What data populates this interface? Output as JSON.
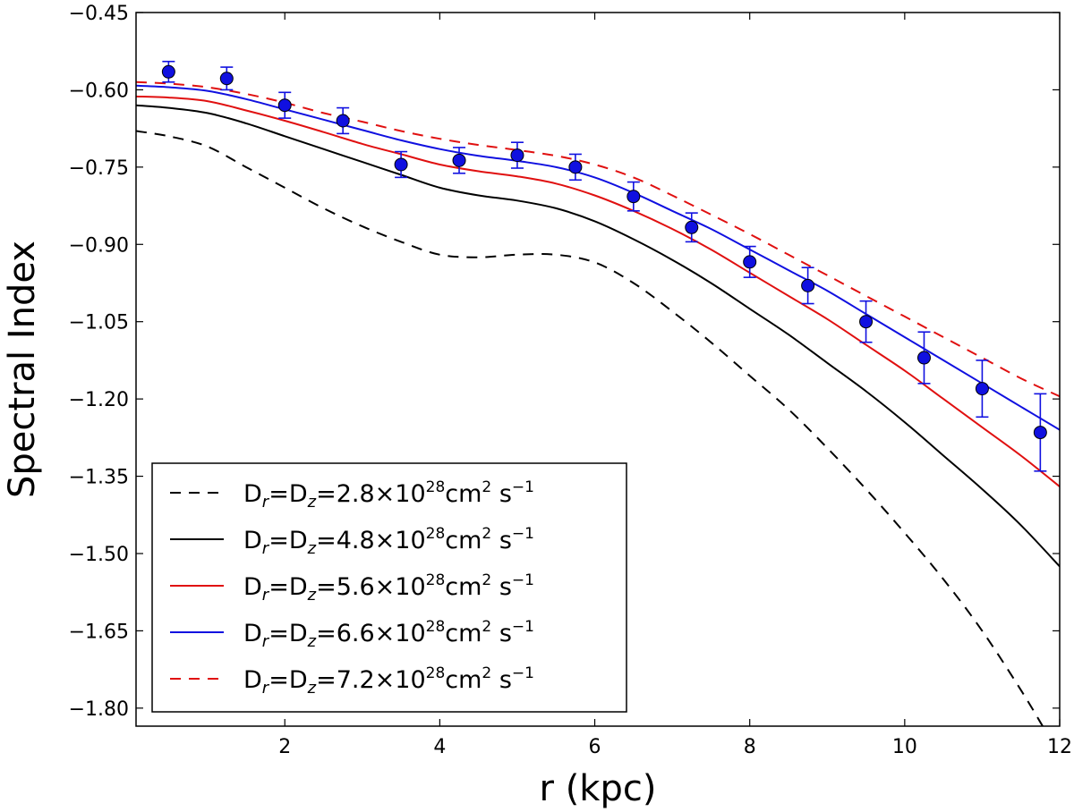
{
  "chart_data": {
    "type": "line",
    "xlabel": "r (kpc)",
    "ylabel": "Spectral Index",
    "xlim": [
      0.08,
      12
    ],
    "ylim": [
      -1.835,
      -0.45
    ],
    "xticks": [
      2,
      4,
      6,
      8,
      10,
      12
    ],
    "xtick_labels": [
      "2",
      "4",
      "6",
      "8",
      "10",
      "12"
    ],
    "yticks": [
      -0.45,
      -0.6,
      -0.75,
      -0.9,
      -1.05,
      -1.2,
      -1.35,
      -1.5,
      -1.65,
      -1.8
    ],
    "ytick_labels": [
      "−0.45",
      "−0.60",
      "−0.75",
      "−0.90",
      "−1.05",
      "−1.20",
      "−1.35",
      "−1.50",
      "−1.65",
      "−1.80"
    ],
    "legend_position": "lower-left",
    "series": [
      {
        "name": "Dr=Dz=2.8e28",
        "label_parts": [
          "D",
          "r",
          "=D",
          "z",
          "=2.8×10",
          "28",
          "cm",
          "2",
          " s",
          "−1"
        ],
        "color": "#000000",
        "dashed": true,
        "x": [
          0.08,
          0.5,
          1,
          1.5,
          2,
          2.5,
          3,
          3.5,
          4,
          4.5,
          5,
          5.5,
          6,
          6.5,
          7,
          7.5,
          8,
          8.5,
          9,
          9.5,
          10,
          10.5,
          11,
          11.5,
          11.78
        ],
        "y": [
          -0.68,
          -0.69,
          -0.71,
          -0.75,
          -0.79,
          -0.83,
          -0.865,
          -0.895,
          -0.92,
          -0.925,
          -0.92,
          -0.92,
          -0.935,
          -0.975,
          -1.03,
          -1.09,
          -1.155,
          -1.22,
          -1.295,
          -1.375,
          -1.46,
          -1.55,
          -1.65,
          -1.765,
          -1.835
        ]
      },
      {
        "name": "Dr=Dz=4.8e28",
        "label_parts": [
          "D",
          "r",
          "=D",
          "z",
          "=4.8×10",
          "28",
          "cm",
          "2",
          " s",
          "−1"
        ],
        "color": "#000000",
        "dashed": false,
        "x": [
          0.08,
          0.5,
          1,
          1.5,
          2,
          2.5,
          3,
          3.5,
          4,
          4.5,
          5,
          5.5,
          6,
          6.5,
          7,
          7.5,
          8,
          8.5,
          9,
          9.5,
          10,
          10.5,
          11,
          11.5,
          12
        ],
        "y": [
          -0.63,
          -0.635,
          -0.645,
          -0.665,
          -0.69,
          -0.715,
          -0.74,
          -0.765,
          -0.79,
          -0.805,
          -0.815,
          -0.83,
          -0.855,
          -0.89,
          -0.93,
          -0.975,
          -1.025,
          -1.075,
          -1.13,
          -1.185,
          -1.245,
          -1.31,
          -1.375,
          -1.445,
          -1.525
        ]
      },
      {
        "name": "Dr=Dz=5.6e28",
        "label_parts": [
          "D",
          "r",
          "=D",
          "z",
          "=5.6×10",
          "28",
          "cm",
          "2",
          " s",
          "−1"
        ],
        "color": "#e01010",
        "dashed": false,
        "x": [
          0.08,
          0.5,
          1,
          1.5,
          2,
          2.5,
          3,
          3.5,
          4,
          4.5,
          5,
          5.5,
          6,
          6.5,
          7,
          7.5,
          8,
          8.5,
          9,
          9.5,
          10,
          10.5,
          11,
          11.5,
          12
        ],
        "y": [
          -0.613,
          -0.615,
          -0.622,
          -0.64,
          -0.66,
          -0.682,
          -0.705,
          -0.725,
          -0.745,
          -0.758,
          -0.768,
          -0.782,
          -0.805,
          -0.835,
          -0.87,
          -0.91,
          -0.955,
          -1.0,
          -1.045,
          -1.095,
          -1.145,
          -1.2,
          -1.255,
          -1.31,
          -1.37
        ]
      },
      {
        "name": "Dr=Dz=6.6e28",
        "label_parts": [
          "D",
          "r",
          "=D",
          "z",
          "=6.6×10",
          "28",
          "cm",
          "2",
          " s",
          "−1"
        ],
        "color": "#1010e0",
        "dashed": false,
        "x": [
          0.08,
          0.5,
          1,
          1.5,
          2,
          2.5,
          3,
          3.5,
          4,
          4.5,
          5,
          5.5,
          6,
          6.5,
          7,
          7.5,
          8,
          8.5,
          9,
          9.5,
          10,
          10.5,
          11,
          11.5,
          12
        ],
        "y": [
          -0.592,
          -0.595,
          -0.602,
          -0.618,
          -0.638,
          -0.658,
          -0.678,
          -0.698,
          -0.715,
          -0.728,
          -0.738,
          -0.75,
          -0.77,
          -0.8,
          -0.835,
          -0.87,
          -0.91,
          -0.95,
          -0.99,
          -1.035,
          -1.08,
          -1.125,
          -1.17,
          -1.215,
          -1.26
        ]
      },
      {
        "name": "Dr=Dz=7.2e28",
        "label_parts": [
          "D",
          "r",
          "=D",
          "z",
          "=7.2×10",
          "28",
          "cm",
          "2",
          " s",
          "−1"
        ],
        "color": "#e01010",
        "dashed": true,
        "x": [
          0.08,
          0.5,
          1,
          1.5,
          2,
          2.5,
          3,
          3.5,
          4,
          4.5,
          5,
          5.5,
          6,
          6.5,
          7,
          7.5,
          8,
          8.5,
          9,
          9.5,
          10,
          10.5,
          11,
          11.5,
          12
        ],
        "y": [
          -0.585,
          -0.588,
          -0.595,
          -0.608,
          -0.625,
          -0.645,
          -0.662,
          -0.68,
          -0.695,
          -0.707,
          -0.717,
          -0.728,
          -0.745,
          -0.77,
          -0.805,
          -0.842,
          -0.88,
          -0.92,
          -0.96,
          -1.0,
          -1.04,
          -1.08,
          -1.12,
          -1.16,
          -1.195
        ]
      }
    ],
    "data_points": {
      "name": "observed",
      "color": "#1010e0",
      "x": [
        0.5,
        1.25,
        2.0,
        2.75,
        3.5,
        4.25,
        5.0,
        5.75,
        6.5,
        7.25,
        8.0,
        8.75,
        9.5,
        10.25,
        11.0,
        11.75
      ],
      "y": [
        -0.565,
        -0.578,
        -0.63,
        -0.66,
        -0.745,
        -0.737,
        -0.727,
        -0.75,
        -0.807,
        -0.867,
        -0.934,
        -0.98,
        -1.05,
        -1.12,
        -1.18,
        -1.265
      ],
      "yerr": [
        0.02,
        0.022,
        0.025,
        0.025,
        0.025,
        0.025,
        0.025,
        0.025,
        0.028,
        0.028,
        0.03,
        0.035,
        0.04,
        0.05,
        0.055,
        0.075
      ]
    }
  }
}
